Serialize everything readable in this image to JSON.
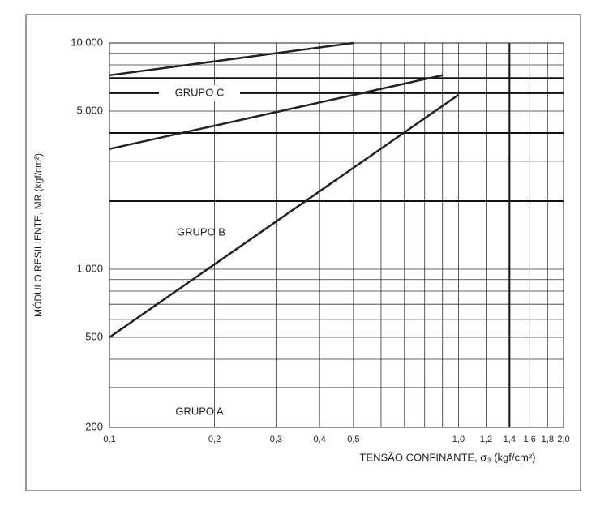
{
  "chart_data": {
    "type": "line",
    "x_label": "TENSÃO CONFINANTE, σ₃ (kgf/cm²)",
    "y_label": "MÓDULO RESILIENTE, MR (kgf/cm²)",
    "log_x": true,
    "log_y": true,
    "grid": true,
    "xlim": [
      0.1,
      2.0
    ],
    "ylim": [
      200,
      10000
    ],
    "xticks": [
      {
        "value": 0.1,
        "label": "0,1"
      },
      {
        "value": 0.2,
        "label": "0,2"
      },
      {
        "value": 0.3,
        "label": "0,3"
      },
      {
        "value": 0.4,
        "label": "0,4"
      },
      {
        "value": 0.5,
        "label": "0,5"
      },
      {
        "value": 1.0,
        "label": "1,0"
      },
      {
        "value": 1.2,
        "label": "1,2"
      },
      {
        "value": 1.4,
        "label": "1,4"
      },
      {
        "value": 1.6,
        "label": "1,6"
      },
      {
        "value": 1.8,
        "label": "1,8"
      },
      {
        "value": 2.0,
        "label": "2,0"
      }
    ],
    "yticks": [
      200,
      500,
      {
        "value": 1000,
        "label": "1.000"
      },
      {
        "value": 5000,
        "label": "5.000"
      },
      {
        "value": 10000,
        "label": "10.000"
      }
    ],
    "x_grid": [
      0.1,
      0.2,
      0.3,
      0.4,
      0.5,
      0.6,
      0.7,
      0.8,
      0.9,
      1.0,
      1.2,
      1.4,
      1.6,
      1.8,
      2.0
    ],
    "y_grid": [
      200,
      300,
      400,
      500,
      600,
      700,
      800,
      900,
      1000,
      2000,
      3000,
      4000,
      5000,
      6000,
      7000,
      8000,
      9000,
      10000
    ],
    "x_heavy": [
      1.4
    ],
    "y_heavy": [
      2000,
      4000,
      6000,
      7000
    ],
    "series": [
      {
        "color": "#222222",
        "x": [
          0.1,
          0.5
        ],
        "values": [
          7200,
          10000
        ]
      },
      {
        "color": "#222222",
        "x": [
          0.1,
          0.9
        ],
        "values": [
          3400,
          7200
        ]
      },
      {
        "color": "#222222",
        "x": [
          0.1,
          1.0
        ],
        "values": [
          500,
          5900
        ]
      }
    ],
    "annotations": [
      "GRUPO C",
      "GRUPO B",
      "GRUPO A"
    ]
  }
}
